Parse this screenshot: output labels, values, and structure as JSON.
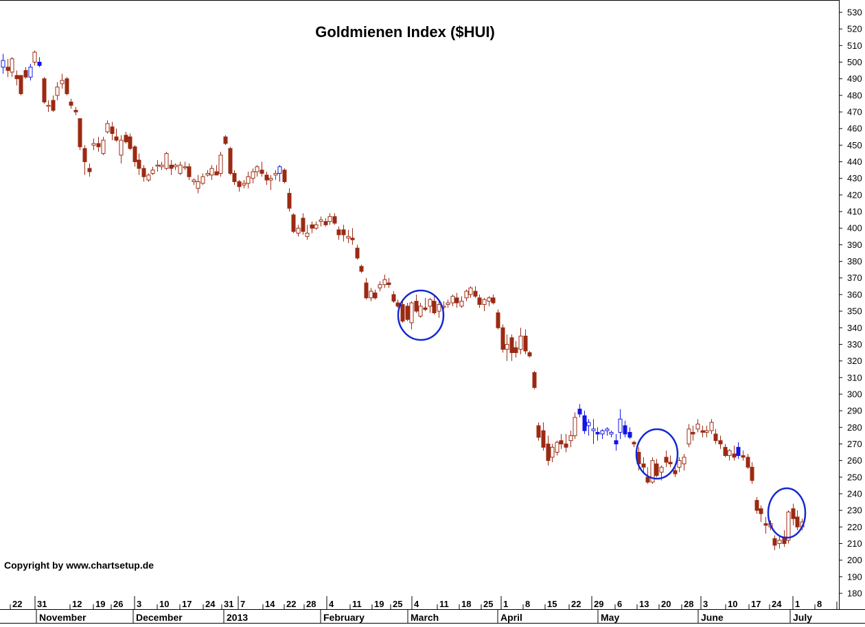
{
  "chart_data": {
    "type": "candlestick",
    "title": "Goldmienen Index  ($HUI)",
    "copyright": "Copyright by www.chartsetup.de",
    "ylim": [
      175,
      534
    ],
    "y_ticks": [
      180,
      190,
      200,
      210,
      220,
      230,
      240,
      250,
      260,
      270,
      280,
      290,
      300,
      310,
      320,
      330,
      340,
      350,
      360,
      370,
      380,
      390,
      400,
      410,
      420,
      430,
      440,
      450,
      460,
      470,
      480,
      490,
      500,
      510,
      520,
      530
    ],
    "x_day_ticks": [
      "22",
      "31",
      "12",
      "19",
      "26",
      "3",
      "10",
      "17",
      "24",
      "31",
      "7",
      "14",
      "22",
      "28",
      "4",
      "11",
      "19",
      "25",
      "4",
      "11",
      "18",
      "25",
      "1",
      "8",
      "15",
      "22",
      "29",
      "6",
      "13",
      "20",
      "28",
      "3",
      "10",
      "17",
      "24",
      "1",
      "8"
    ],
    "months": [
      "November",
      "December",
      "2013",
      "February",
      "March",
      "April",
      "May",
      "June",
      "July"
    ],
    "colors": {
      "down": "#9b2a12",
      "up": "#9b2a12",
      "blue": "#1414e6",
      "circle": "#1428d2",
      "grid": "#000000"
    },
    "candles": [
      [
        497,
        505,
        493,
        501,
        "b"
      ],
      [
        497,
        502,
        491,
        495,
        "u"
      ],
      [
        494,
        503,
        491,
        502,
        "u"
      ],
      [
        492,
        495,
        486,
        490,
        "d"
      ],
      [
        492,
        492,
        480,
        481,
        "d"
      ],
      [
        495,
        497,
        490,
        491,
        "u"
      ],
      [
        491,
        499,
        489,
        497,
        "b"
      ],
      [
        500,
        507,
        498,
        506,
        "u"
      ],
      [
        500,
        503,
        497,
        498,
        "b"
      ],
      [
        490,
        491,
        475,
        476,
        "d"
      ],
      [
        474,
        477,
        470,
        474,
        "d"
      ],
      [
        477,
        480,
        470,
        471,
        "d"
      ],
      [
        480,
        488,
        477,
        485,
        "u"
      ],
      [
        487,
        493,
        484,
        489,
        "u"
      ],
      [
        490,
        491,
        480,
        481,
        "d"
      ],
      [
        476,
        478,
        472,
        474,
        "d"
      ],
      [
        471,
        473,
        468,
        470,
        "d"
      ],
      [
        466,
        466,
        447,
        449,
        "d"
      ],
      [
        448,
        450,
        432,
        440,
        "d"
      ],
      [
        436,
        439,
        431,
        434,
        "d"
      ],
      [
        450,
        454,
        447,
        451,
        "u"
      ],
      [
        451,
        455,
        446,
        449,
        "d"
      ],
      [
        445,
        455,
        444,
        453,
        "u"
      ],
      [
        458,
        465,
        457,
        463,
        "u"
      ],
      [
        461,
        464,
        453,
        457,
        "d"
      ],
      [
        455,
        460,
        452,
        453,
        "d"
      ],
      [
        444,
        456,
        439,
        453,
        "u"
      ],
      [
        456,
        458,
        451,
        452,
        "d"
      ],
      [
        455,
        457,
        447,
        448,
        "d"
      ],
      [
        449,
        450,
        437,
        440,
        "d"
      ],
      [
        441,
        445,
        432,
        436,
        "d"
      ],
      [
        436,
        438,
        428,
        431,
        "d"
      ],
      [
        429,
        433,
        428,
        432,
        "u"
      ],
      [
        433,
        437,
        432,
        435,
        "u"
      ],
      [
        438,
        441,
        434,
        438,
        "u"
      ],
      [
        437,
        440,
        435,
        438,
        "u"
      ],
      [
        436,
        446,
        435,
        445,
        "u"
      ],
      [
        438,
        441,
        432,
        436,
        "d"
      ],
      [
        437,
        439,
        435,
        438,
        "u"
      ],
      [
        433,
        440,
        432,
        438,
        "u"
      ],
      [
        437,
        440,
        435,
        437,
        "d"
      ],
      [
        437,
        439,
        429,
        431,
        "d"
      ],
      [
        428,
        430,
        426,
        429,
        "u"
      ],
      [
        424,
        432,
        421,
        428,
        "u"
      ],
      [
        427,
        433,
        426,
        431,
        "u"
      ],
      [
        432,
        435,
        431,
        433,
        "u"
      ],
      [
        432,
        438,
        429,
        436,
        "u"
      ],
      [
        434,
        438,
        432,
        432,
        "d"
      ],
      [
        433,
        446,
        431,
        444,
        "u"
      ],
      [
        455,
        456,
        450,
        451,
        "d"
      ],
      [
        448,
        449,
        432,
        433,
        "d"
      ],
      [
        433,
        435,
        426,
        428,
        "d"
      ],
      [
        428,
        429,
        422,
        425,
        "d"
      ],
      [
        426,
        429,
        424,
        427,
        "u"
      ],
      [
        427,
        434,
        424,
        431,
        "u"
      ],
      [
        430,
        436,
        427,
        434,
        "u"
      ],
      [
        434,
        438,
        431,
        437,
        "u"
      ],
      [
        435,
        440,
        431,
        433,
        "d"
      ],
      [
        432,
        434,
        426,
        429,
        "d"
      ],
      [
        429,
        432,
        423,
        430,
        "u"
      ],
      [
        432,
        435,
        429,
        433,
        "u"
      ],
      [
        433,
        438,
        428,
        437,
        "b"
      ],
      [
        435,
        436,
        427,
        428,
        "d"
      ],
      [
        421,
        424,
        410,
        412,
        "d"
      ],
      [
        408,
        409,
        397,
        398,
        "d"
      ],
      [
        397,
        402,
        395,
        400,
        "u"
      ],
      [
        406,
        409,
        396,
        398,
        "d"
      ],
      [
        395,
        402,
        393,
        397,
        "d"
      ],
      [
        402,
        404,
        397,
        400,
        "u"
      ],
      [
        400,
        404,
        399,
        402,
        "u"
      ],
      [
        404,
        407,
        401,
        405,
        "u"
      ],
      [
        404,
        406,
        401,
        402,
        "d"
      ],
      [
        404,
        409,
        402,
        407,
        "u"
      ],
      [
        407,
        409,
        402,
        403,
        "d"
      ],
      [
        399,
        401,
        393,
        396,
        "d"
      ],
      [
        399,
        402,
        392,
        396,
        "u"
      ],
      [
        394,
        399,
        391,
        395,
        "u"
      ],
      [
        394,
        400,
        390,
        393,
        "d"
      ],
      [
        388,
        390,
        381,
        382,
        "d"
      ],
      [
        377,
        378,
        373,
        374,
        "d"
      ],
      [
        367,
        370,
        357,
        358,
        "d"
      ],
      [
        358,
        364,
        356,
        362,
        "u"
      ],
      [
        361,
        363,
        357,
        358,
        "d"
      ],
      [
        364,
        368,
        362,
        366,
        "u"
      ],
      [
        366,
        372,
        364,
        369,
        "u"
      ],
      [
        367,
        370,
        364,
        366,
        "d"
      ],
      [
        360,
        362,
        355,
        356,
        "d"
      ],
      [
        355,
        357,
        352,
        353,
        "d"
      ],
      [
        354,
        356,
        343,
        344,
        "d"
      ],
      [
        353,
        355,
        344,
        345,
        "d"
      ],
      [
        343,
        356,
        339,
        355,
        "u"
      ],
      [
        356,
        360,
        349,
        350,
        "d"
      ],
      [
        347,
        355,
        346,
        353,
        "u"
      ],
      [
        352,
        358,
        350,
        351,
        "d"
      ],
      [
        353,
        358,
        349,
        357,
        "u"
      ],
      [
        356,
        360,
        348,
        349,
        "d"
      ],
      [
        350,
        356,
        346,
        354,
        "u"
      ],
      [
        353,
        356,
        351,
        353,
        "u"
      ],
      [
        354,
        357,
        352,
        355,
        "u"
      ],
      [
        355,
        360,
        353,
        359,
        "u"
      ],
      [
        358,
        361,
        352,
        355,
        "d"
      ],
      [
        353,
        359,
        352,
        356,
        "u"
      ],
      [
        358,
        363,
        356,
        362,
        "u"
      ],
      [
        360,
        365,
        358,
        364,
        "u"
      ],
      [
        362,
        365,
        358,
        359,
        "d"
      ],
      [
        358,
        360,
        352,
        354,
        "d"
      ],
      [
        354,
        358,
        350,
        357,
        "u"
      ],
      [
        356,
        359,
        353,
        358,
        "u"
      ],
      [
        358,
        360,
        354,
        355,
        "d"
      ],
      [
        349,
        351,
        339,
        340,
        "d"
      ],
      [
        340,
        342,
        325,
        327,
        "d"
      ],
      [
        327,
        336,
        320,
        330,
        "u"
      ],
      [
        334,
        336,
        320,
        325,
        "d"
      ],
      [
        328,
        332,
        322,
        325,
        "d"
      ],
      [
        327,
        340,
        324,
        335,
        "u"
      ],
      [
        335,
        339,
        324,
        326,
        "d"
      ],
      [
        325,
        326,
        322,
        323,
        "d"
      ],
      [
        313,
        314,
        303,
        304,
        "d"
      ],
      [
        281,
        283,
        272,
        274,
        "d"
      ],
      [
        278,
        283,
        266,
        268,
        "d"
      ],
      [
        270,
        275,
        257,
        260,
        "d"
      ],
      [
        262,
        270,
        259,
        268,
        "u"
      ],
      [
        265,
        272,
        263,
        271,
        "u"
      ],
      [
        272,
        276,
        267,
        270,
        "d"
      ],
      [
        270,
        276,
        265,
        268,
        "d"
      ],
      [
        272,
        278,
        268,
        275,
        "u"
      ],
      [
        275,
        289,
        273,
        286,
        "u"
      ],
      [
        291,
        294,
        286,
        288,
        "b"
      ],
      [
        287,
        290,
        276,
        278,
        "b"
      ],
      [
        281,
        285,
        275,
        283,
        "b"
      ],
      [
        278,
        285,
        270,
        279,
        "b"
      ],
      [
        277,
        280,
        272,
        276,
        "b"
      ],
      [
        276,
        279,
        273,
        278,
        "b"
      ],
      [
        278,
        280,
        275,
        279,
        "b"
      ],
      [
        276,
        278,
        274,
        277,
        "b"
      ],
      [
        272,
        276,
        266,
        270,
        "b"
      ],
      [
        277,
        291,
        273,
        285,
        "b"
      ],
      [
        281,
        284,
        274,
        276,
        "b"
      ],
      [
        277,
        280,
        273,
        274,
        "b"
      ],
      [
        271,
        272,
        268,
        270,
        "d"
      ],
      [
        265,
        268,
        254,
        258,
        "d"
      ],
      [
        258,
        262,
        253,
        256,
        "d"
      ],
      [
        250,
        256,
        246,
        247,
        "d"
      ],
      [
        247,
        262,
        246,
        260,
        "u"
      ],
      [
        258,
        261,
        250,
        251,
        "d"
      ],
      [
        253,
        257,
        248,
        256,
        "u"
      ],
      [
        262,
        266,
        256,
        259,
        "d"
      ],
      [
        259,
        263,
        256,
        258,
        "d"
      ],
      [
        254,
        256,
        250,
        252,
        "d"
      ],
      [
        256,
        262,
        253,
        260,
        "u"
      ],
      [
        258,
        264,
        254,
        262,
        "u"
      ],
      [
        270,
        282,
        268,
        279,
        "u"
      ],
      [
        277,
        281,
        272,
        276,
        "d"
      ],
      [
        279,
        285,
        277,
        282,
        "u"
      ],
      [
        278,
        281,
        274,
        277,
        "u"
      ],
      [
        277,
        281,
        274,
        278,
        "u"
      ],
      [
        278,
        285,
        276,
        283,
        "u"
      ],
      [
        276,
        279,
        270,
        272,
        "d"
      ],
      [
        272,
        275,
        267,
        270,
        "d"
      ],
      [
        268,
        270,
        262,
        263,
        "d"
      ],
      [
        263,
        267,
        260,
        266,
        "u"
      ],
      [
        264,
        269,
        260,
        262,
        "d"
      ],
      [
        268,
        271,
        261,
        263,
        "b"
      ],
      [
        263,
        266,
        260,
        262,
        "d"
      ],
      [
        262,
        264,
        255,
        256,
        "d"
      ],
      [
        256,
        259,
        246,
        248,
        "d"
      ],
      [
        236,
        238,
        228,
        230,
        "d"
      ],
      [
        231,
        233,
        223,
        228,
        "d"
      ],
      [
        222,
        226,
        216,
        221,
        "d"
      ],
      [
        220,
        224,
        218,
        222,
        "u"
      ],
      [
        213,
        215,
        206,
        209,
        "d"
      ],
      [
        210,
        215,
        207,
        212,
        "u"
      ],
      [
        214,
        218,
        208,
        210,
        "d"
      ],
      [
        212,
        230,
        210,
        229,
        "u"
      ],
      [
        231,
        234,
        221,
        225,
        "d"
      ],
      [
        226,
        230,
        218,
        220,
        "d"
      ],
      [
        220,
        225,
        218,
        223,
        "u"
      ]
    ],
    "circles": [
      {
        "x": 613,
        "y": 459,
        "rx": 33,
        "ry": 36
      },
      {
        "x": 957,
        "y": 661,
        "rx": 30,
        "ry": 36
      },
      {
        "x": 1146,
        "y": 747,
        "rx": 27,
        "ry": 36
      }
    ]
  }
}
